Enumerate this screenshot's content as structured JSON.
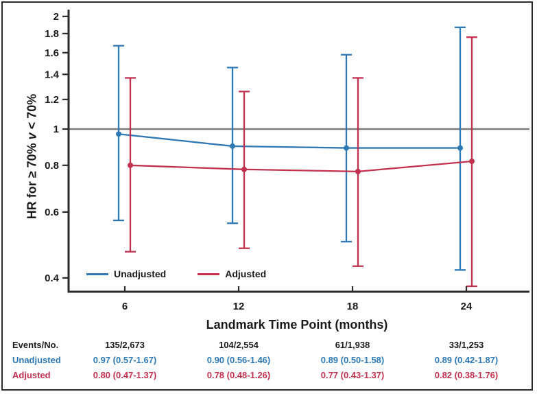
{
  "chart_data": {
    "type": "line",
    "title": "",
    "xlabel": "Landmark Time Point (months)",
    "ylabel_parts": [
      "HR for ≥ 70% ",
      "v",
      " < 70%"
    ],
    "yscale": "log",
    "ylim": [
      0.37,
      2.05
    ],
    "grid": false,
    "reference_line": 1,
    "legend_position": "inside-bottom-left",
    "x": [
      6,
      12,
      18,
      24
    ],
    "ytick_labels": [
      "2",
      "1.8",
      "1.6",
      "1.4",
      "1.2",
      "1",
      "0.8",
      "0.6",
      "0.4"
    ],
    "series": [
      {
        "name": "Unadjusted",
        "color": "#2E78B4",
        "hr": [
          0.97,
          0.9,
          0.89,
          0.89
        ],
        "ci_low": [
          0.57,
          0.56,
          0.5,
          0.42
        ],
        "ci_high": [
          1.67,
          1.46,
          1.58,
          1.87
        ]
      },
      {
        "name": "Adjusted",
        "color": "#C2314D",
        "hr": [
          0.8,
          0.78,
          0.77,
          0.82
        ],
        "ci_low": [
          0.47,
          0.48,
          0.43,
          0.38
        ],
        "ci_high": [
          1.37,
          1.26,
          1.37,
          1.76
        ]
      }
    ]
  },
  "table": {
    "row_labels": {
      "events": "Events/No.",
      "unadjusted": "Unadjusted",
      "adjusted": "Adjusted"
    },
    "columns": [
      {
        "events": "135/2,673",
        "unadjusted": "0.97 (0.57-1.67)",
        "adjusted": "0.80 (0.47-1.37)"
      },
      {
        "events": "104/2,554",
        "unadjusted": "0.90 (0.56-1.46)",
        "adjusted": "0.78 (0.48-1.26)"
      },
      {
        "events": "61/1,938",
        "unadjusted": "0.89 (0.50-1.58)",
        "adjusted": "0.77 (0.43-1.37)"
      },
      {
        "events": "33/1,253",
        "unadjusted": "0.89 (0.42-1.87)",
        "adjusted": "0.82 (0.38-1.76)"
      }
    ]
  },
  "colors": {
    "axis": "#2b2b2b",
    "reference_line": "#7a7a7a",
    "text": "#1a1a1a",
    "border": "#2b2b2b"
  }
}
